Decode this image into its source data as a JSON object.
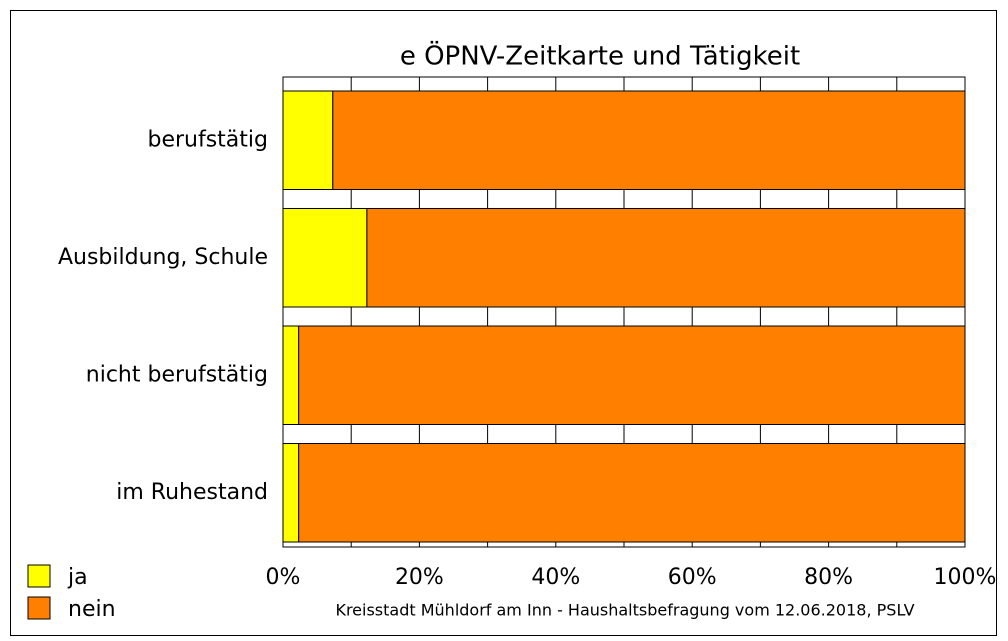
{
  "chart_data": {
    "type": "stacked_bar_horizontal",
    "title": "e   ÖPNV-Zeitkarte und Tätigkeit",
    "categories": [
      "berufstätig",
      "Ausbildung, Schule",
      "nicht berufstätig",
      "im Ruhestand"
    ],
    "series": [
      {
        "name": "ja",
        "color": "#ffff00",
        "values": [
          7.3,
          12.3,
          2.3,
          2.3
        ]
      },
      {
        "name": "nein",
        "color": "#ff8000",
        "values": [
          92.7,
          87.7,
          97.7,
          97.7
        ]
      }
    ],
    "xlim": [
      0,
      100
    ],
    "xticks": [
      {
        "value": 0,
        "label": "0%"
      },
      {
        "value": 20,
        "label": "20%"
      },
      {
        "value": 40,
        "label": "40%"
      },
      {
        "value": 60,
        "label": "60%"
      },
      {
        "value": 80,
        "label": "80%"
      },
      {
        "value": 100,
        "label": "100%"
      }
    ],
    "xgrid": [
      0,
      10,
      20,
      30,
      40,
      50,
      60,
      70,
      80,
      90,
      100
    ],
    "legend": "bottom-left",
    "footnote": "Kreisstadt Mühldorf am Inn - Haushaltsbefragung vom 12.06.2018, PSLV"
  }
}
